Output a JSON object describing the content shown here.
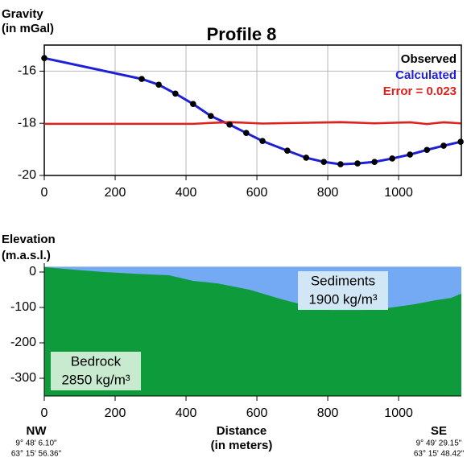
{
  "chart_data": [
    {
      "type": "line",
      "title": "Profile 8",
      "y_label": [
        "Gravity",
        "(in mGal)"
      ],
      "xlim": [
        0,
        1177
      ],
      "xticks": [
        0,
        200,
        400,
        600,
        800,
        1000
      ],
      "ylim": [
        -20,
        -15
      ],
      "yticks": [
        -20,
        -18,
        -16
      ],
      "grid": true,
      "legend": "upper right",
      "series": [
        {
          "name": "Observed",
          "color": "#000000",
          "mark": "points",
          "x": [
            0,
            275,
            323,
            370,
            420,
            470,
            523,
            570,
            616,
            686,
            739,
            789,
            836,
            884,
            932,
            982,
            1032,
            1080,
            1127,
            1175
          ],
          "values": [
            -15.5,
            -16.3,
            -16.52,
            -16.86,
            -17.26,
            -17.72,
            -18.05,
            -18.37,
            -18.68,
            -19.05,
            -19.32,
            -19.48,
            -19.57,
            -19.54,
            -19.48,
            -19.35,
            -19.2,
            -19.02,
            -18.86,
            -18.71
          ]
        },
        {
          "name": "Calculated",
          "color": "#1f1fd6",
          "mark": "line",
          "x": [
            0,
            275,
            323,
            370,
            420,
            470,
            523,
            570,
            616,
            686,
            739,
            789,
            836,
            884,
            932,
            982,
            1032,
            1080,
            1127,
            1175
          ],
          "values": [
            -15.5,
            -16.3,
            -16.52,
            -16.86,
            -17.26,
            -17.72,
            -18.05,
            -18.37,
            -18.68,
            -19.05,
            -19.32,
            -19.48,
            -19.57,
            -19.54,
            -19.48,
            -19.35,
            -19.2,
            -19.02,
            -18.86,
            -18.71
          ]
        },
        {
          "name": "Error = 0.023",
          "color": "#e0201c",
          "mark": "line",
          "x": [
            0,
            275,
            420,
            523,
            616,
            739,
            836,
            932,
            1032,
            1080,
            1127,
            1175
          ],
          "values": [
            -18.02,
            -18.02,
            -18.02,
            -17.95,
            -18.01,
            -17.98,
            -17.95,
            -18.0,
            -17.96,
            -18.03,
            -17.96,
            -18.0
          ]
        }
      ]
    },
    {
      "type": "area",
      "y_label": [
        "Elevation",
        "(m.a.s.l.)"
      ],
      "x_label": [
        "Distance",
        "(in meters)"
      ],
      "xlim": [
        0,
        1177
      ],
      "xticks": [
        0,
        200,
        400,
        600,
        800,
        1000
      ],
      "ylim": [
        -350,
        25
      ],
      "yticks": [
        0,
        -100,
        -200,
        -300
      ],
      "series": [
        {
          "name": "Sediments",
          "color": "#74a9f4",
          "label_color": "#d2e7f6",
          "annotation": "1900 kg/m³",
          "x": [
            0,
            1177
          ],
          "values": [
            15,
            15
          ]
        },
        {
          "name": "Bedrock",
          "color": "#0e9b3c",
          "label_color": "#c8ebd0",
          "annotation": "2850 kg/m³",
          "x": [
            0,
            102,
            170,
            261,
            352,
            420,
            489,
            580,
            670,
            739,
            807,
            898,
            966,
            1045,
            1102,
            1148,
            1177
          ],
          "values": [
            14,
            5,
            0,
            -5,
            -9,
            -25,
            -32,
            -50,
            -77,
            -95,
            -107,
            -107,
            -102,
            -91,
            -80,
            -73,
            -61
          ]
        }
      ],
      "ends": [
        {
          "name": "NW",
          "coords": [
            "9° 48' 6.10\"",
            "63° 15' 56.36\""
          ]
        },
        {
          "name": "SE",
          "coords": [
            "9° 49' 29.15\"",
            "63° 15' 48.42\""
          ]
        }
      ]
    }
  ]
}
